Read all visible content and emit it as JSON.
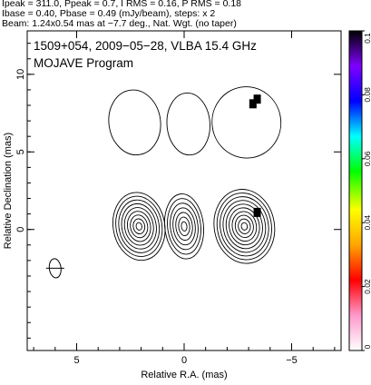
{
  "header": {
    "line1": "Ipeak = 311.0, Ppeak = 0.7, I RMS = 0.16, P RMS = 0.18",
    "line2": "Ibase = 0.40, Pbase = 0.49 (mJy/beam), steps: x 2",
    "line3": "Beam: 1.24x0.54 mas at −7.7 deg., Nat. Wgt. (no taper)"
  },
  "chart_data": {
    "type": "contour",
    "title": "1509+054, 2009−05−28, VLBA 15.4 GHz",
    "subtitle": "MOJAVE Program",
    "xlabel": "Relative R.A. (mas)",
    "ylabel": "Relative Declination (mas)",
    "xlim": [
      7.3,
      -7.3
    ],
    "ylim": [
      -7.8,
      12.8
    ],
    "xticks": [
      5,
      0,
      -5
    ],
    "yticks": [
      0,
      5,
      10
    ],
    "grid": false,
    "colorbar": {
      "min": 0,
      "max": 0.1,
      "ticks": [
        "0",
        "0.02",
        "0.04",
        "0.06",
        "0.08",
        "0.1"
      ],
      "colors": [
        "#ffffff",
        "#ff99cc",
        "#ff0000",
        "#ffa500",
        "#ffff00",
        "#00ff00",
        "#00ffff",
        "#0000ff",
        "#8000ff",
        "#000000"
      ]
    },
    "components": [
      {
        "name": "north-left",
        "x": 2.3,
        "y": 6.9,
        "levels": 1,
        "rx": 1.2,
        "ry": 2.1,
        "tilt": -8
      },
      {
        "name": "north-mid",
        "x": -0.2,
        "y": 6.8,
        "levels": 1,
        "rx": 1.0,
        "ry": 2.0,
        "tilt": -4
      },
      {
        "name": "north-right",
        "x": -2.9,
        "y": 6.9,
        "levels": 1,
        "rx": 1.6,
        "ry": 2.3,
        "tilt": -8
      },
      {
        "name": "south-left",
        "x": 2.1,
        "y": 0.2,
        "levels": 9,
        "rx": 1.2,
        "ry": 2.2,
        "tilt": -10
      },
      {
        "name": "south-mid",
        "x": 0.0,
        "y": 0.2,
        "levels": 7,
        "rx": 0.9,
        "ry": 2.1,
        "tilt": -6
      },
      {
        "name": "south-right",
        "x": -2.8,
        "y": 0.2,
        "levels": 10,
        "rx": 1.4,
        "ry": 2.4,
        "tilt": -10
      }
    ],
    "polarization_pixels": [
      {
        "x": -3.4,
        "y": 8.4
      },
      {
        "x": -3.2,
        "y": 8.1
      },
      {
        "x": -3.4,
        "y": 1.1
      }
    ],
    "beam": {
      "x": 6.0,
      "y": -2.5,
      "major": 1.24,
      "minor": 0.54,
      "pa": -7.7
    }
  }
}
